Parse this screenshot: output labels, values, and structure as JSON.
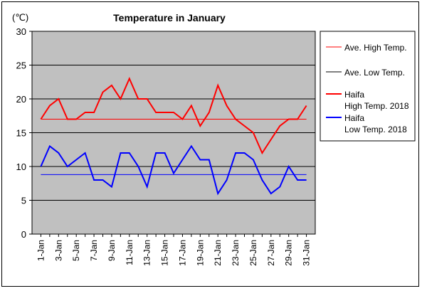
{
  "chart_data": {
    "type": "line",
    "title": "Temperature in January",
    "unit_label": "(℃)",
    "xlabel": "",
    "ylabel": "",
    "ylim": [
      0,
      30
    ],
    "y_ticks": [
      0,
      5,
      10,
      15,
      20,
      25,
      30
    ],
    "x": [
      "1-Jan",
      "2-Jan",
      "3-Jan",
      "4-Jan",
      "5-Jan",
      "6-Jan",
      "7-Jan",
      "8-Jan",
      "9-Jan",
      "10-Jan",
      "11-Jan",
      "12-Jan",
      "13-Jan",
      "14-Jan",
      "15-Jan",
      "16-Jan",
      "17-Jan",
      "18-Jan",
      "19-Jan",
      "20-Jan",
      "21-Jan",
      "22-Jan",
      "23-Jan",
      "24-Jan",
      "25-Jan",
      "26-Jan",
      "27-Jan",
      "28-Jan",
      "29-Jan",
      "30-Jan",
      "31-Jan"
    ],
    "x_tick_labels": [
      "1-Jan",
      "3-Jan",
      "5-Jan",
      "7-Jan",
      "9-Jan",
      "11-Jan",
      "13-Jan",
      "15-Jan",
      "17-Jan",
      "19-Jan",
      "21-Jan",
      "23-Jan",
      "25-Jan",
      "27-Jan",
      "29-Jan",
      "31-Jan"
    ],
    "grid": true,
    "legend_position": "right",
    "series": [
      {
        "name": "Ave. High Temp.",
        "color": "#ff0000",
        "style": "thin",
        "values": [
          17,
          17,
          17,
          17,
          17,
          17,
          17,
          17,
          17,
          17,
          17,
          17,
          17,
          17,
          17,
          17,
          17,
          17,
          17,
          17,
          17,
          17,
          17,
          17,
          17,
          17,
          17,
          17,
          17,
          17,
          17
        ]
      },
      {
        "name": "Ave. Low Temp.",
        "color": "#0000ff",
        "style": "thin",
        "values": [
          8.8,
          8.8,
          8.8,
          8.8,
          8.8,
          8.8,
          8.8,
          8.8,
          8.8,
          8.8,
          8.8,
          8.8,
          8.8,
          8.8,
          8.8,
          8.8,
          8.8,
          8.8,
          8.8,
          8.8,
          8.8,
          8.8,
          8.8,
          8.8,
          8.8,
          8.8,
          8.8,
          8.8,
          8.8,
          8.8,
          8.8
        ]
      },
      {
        "name": "Haifa\nHigh Temp. 2018",
        "color": "#ff0000",
        "style": "thick",
        "values": [
          17,
          19,
          20,
          17,
          17,
          18,
          18,
          21,
          22,
          20,
          23,
          20,
          20,
          18,
          18,
          18,
          17,
          19,
          16,
          18,
          22,
          19,
          17,
          16,
          15,
          12,
          14,
          16,
          17,
          17,
          19
        ]
      },
      {
        "name": "Haifa\nLow Temp. 2018",
        "color": "#0000ff",
        "style": "thick",
        "values": [
          10,
          13,
          12,
          10,
          11,
          12,
          8,
          8,
          7,
          12,
          12,
          10,
          7,
          12,
          12,
          9,
          11,
          13,
          11,
          11,
          6,
          8,
          12,
          12,
          11,
          8,
          6,
          7,
          10,
          8,
          8
        ]
      }
    ],
    "legend_entries": [
      {
        "lines": [
          "Ave. High Temp."
        ],
        "color": "#ff0000",
        "style": "thin"
      },
      {
        "lines": [
          "Ave. Low Temp."
        ],
        "color": "#000000",
        "style": "thin"
      },
      {
        "lines": [
          "Haifa",
          "High Temp. 2018"
        ],
        "color": "#ff0000",
        "style": "thick"
      },
      {
        "lines": [
          "Haifa",
          "Low Temp. 2018"
        ],
        "color": "#0000ff",
        "style": "thick"
      }
    ]
  }
}
